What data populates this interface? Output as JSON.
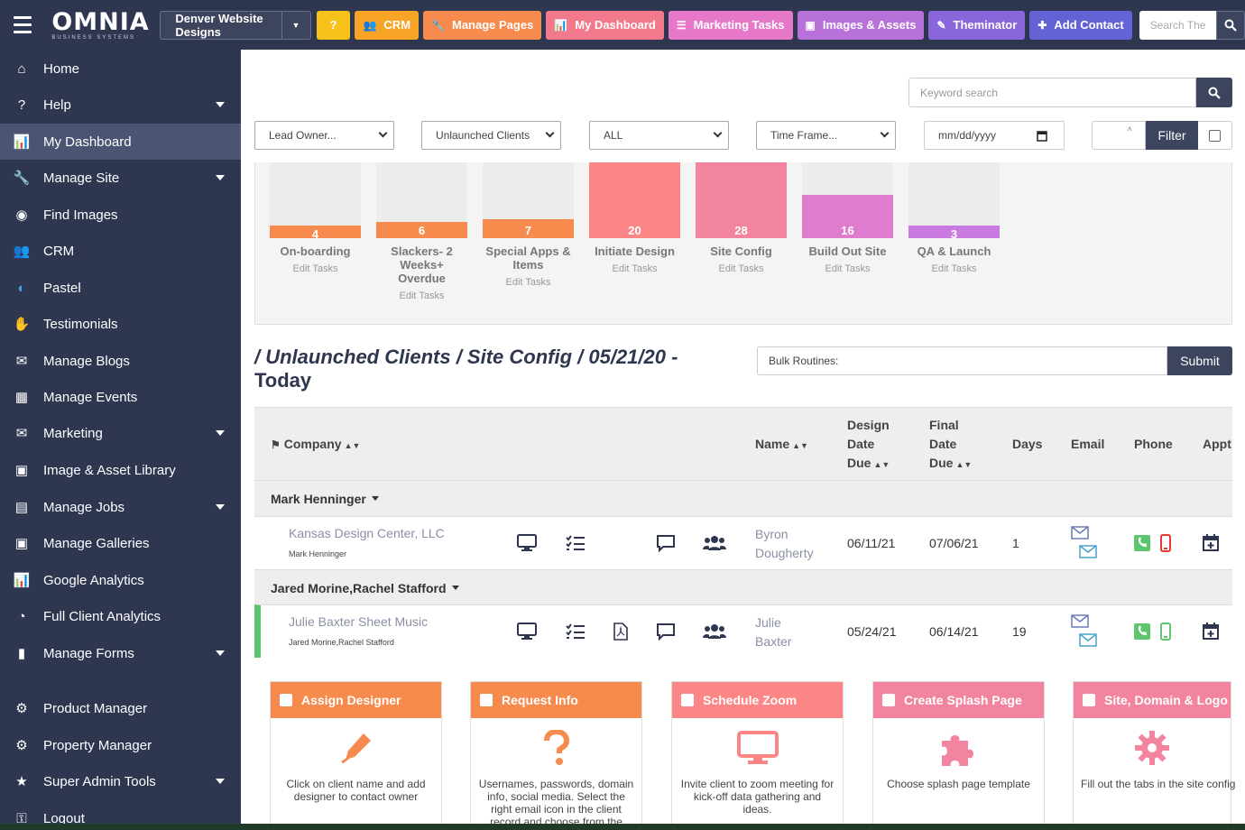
{
  "topbar": {
    "logo": "OMNIA",
    "logo_sub": "BUSINESS SYSTEMS",
    "site_select": "Denver Website Designs",
    "buttons": [
      {
        "label": "?",
        "icon": "question-icon",
        "color": "#f6c21a"
      },
      {
        "label": "CRM",
        "icon": "users-icon",
        "color": "#f7a427"
      },
      {
        "label": "Manage Pages",
        "icon": "wrench-icon",
        "color": "#f68b4d"
      },
      {
        "label": "My Dashboard",
        "icon": "chart-icon",
        "color": "#f2798c"
      },
      {
        "label": "Marketing Tasks",
        "icon": "tasks-icon",
        "color": "#e778c9"
      },
      {
        "label": "Images & Assets",
        "icon": "image-icon",
        "color": "#b871d9"
      },
      {
        "label": "Theminator",
        "icon": "brush-icon",
        "color": "#8a66db"
      },
      {
        "label": "Add Contact",
        "icon": "user-plus-icon",
        "color": "#6463d6"
      }
    ],
    "search_placeholder": "Search The"
  },
  "sidebar": {
    "items": [
      {
        "label": "Home",
        "icon": "home-icon"
      },
      {
        "label": "Help",
        "icon": "question-icon",
        "arrow": true
      },
      {
        "label": "My Dashboard",
        "icon": "chart-icon",
        "active": true
      },
      {
        "label": "Manage Site",
        "icon": "wrench-icon",
        "arrow": true
      },
      {
        "label": "Find Images",
        "icon": "camera-icon"
      },
      {
        "label": "CRM",
        "icon": "users-icon"
      },
      {
        "label": "Pastel",
        "icon": "pastel-icon"
      },
      {
        "label": "Testimonials",
        "icon": "handshake-icon"
      },
      {
        "label": "Manage Blogs",
        "icon": "comments-icon"
      },
      {
        "label": "Manage Events",
        "icon": "calendar-icon"
      },
      {
        "label": "Marketing",
        "icon": "envelope-icon",
        "arrow": true
      },
      {
        "label": "Image & Asset Library",
        "icon": "image-icon"
      },
      {
        "label": "Manage Jobs",
        "icon": "briefcase-icon",
        "arrow": true
      },
      {
        "label": "Manage Galleries",
        "icon": "images-icon"
      },
      {
        "label": "Google Analytics",
        "icon": "chart-icon"
      },
      {
        "label": "Full Client Analytics",
        "icon": "pie-icon"
      },
      {
        "label": "Manage Forms",
        "icon": "file-icon",
        "arrow": true
      },
      {
        "label": "Product Manager",
        "icon": "gear-icon"
      },
      {
        "label": "Property Manager",
        "icon": "gear-icon"
      },
      {
        "label": "Super Admin Tools",
        "icon": "star-icon",
        "arrow": true
      },
      {
        "label": "Logout",
        "icon": "unlock-icon"
      }
    ]
  },
  "filters": {
    "keyword_placeholder": "Keyword search",
    "lead_owner": "Lead Owner...",
    "client_type": "Unlaunched Clients",
    "scope": "ALL",
    "time_frame": "Time Frame...",
    "date_placeholder": "mm/dd/yyyy",
    "filter_label": "Filter"
  },
  "chart_data": {
    "type": "bar",
    "categories": [
      "On-boarding",
      "Slackers- 2 Weeks+ Overdue",
      "Special Apps & Items",
      "Initiate Design",
      "Site Config",
      "Build Out Site",
      "QA & Launch"
    ],
    "values": [
      4,
      6,
      7,
      20,
      28,
      16,
      3
    ],
    "colors": [
      "#f68b4d",
      "#f68b4d",
      "#f68b4d",
      "#fc8585",
      "#f3849f",
      "#e07ccd",
      "#c97ae0"
    ],
    "edit_label": "Edit Tasks"
  },
  "breadcrumb": {
    "path": "/ Unlaunched Clients / Site Config / 05/21/20 -",
    "suffix": "Today"
  },
  "bulk": {
    "placeholder": "Bulk Routines:",
    "submit": "Submit"
  },
  "table": {
    "headers": {
      "company": "Company",
      "name": "Name",
      "design_due": "Design Date Due",
      "final_due": "Final Date Due",
      "days": "Days",
      "email": "Email",
      "phone": "Phone",
      "appt": "Appt"
    },
    "groups": [
      {
        "owner": "Mark Henninger",
        "rows": [
          {
            "company": "Kansas Design Center, LLC",
            "owner": "Mark Henninger",
            "name_first": "Byron",
            "name_last": "Dougherty",
            "design_due": "06/11/21",
            "final_due": "07/06/21",
            "days": "1",
            "mobile_color": "#e53935"
          }
        ]
      },
      {
        "owner": "Jared Morine,Rachel Stafford",
        "rows": [
          {
            "company": "Julie Baxter Sheet Music",
            "owner": "Jared Morine,Rachel Stafford",
            "name_first": "Julie",
            "name_last": "Baxter",
            "design_due": "05/24/21",
            "final_due": "06/14/21",
            "days": "19",
            "mobile_color": "#5cc56d"
          }
        ]
      }
    ]
  },
  "cards": [
    {
      "title": "Assign Designer",
      "color": "#f68b4d",
      "icon": "pen-icon",
      "text": "Click on client name and add designer to contact owner"
    },
    {
      "title": "Request Info",
      "color": "#f68b4d",
      "icon": "question-icon",
      "text": "Usernames, passwords, domain info, social media. Select the right email icon in the client record and choose from the dropdown"
    },
    {
      "title": "Schedule Zoom",
      "color": "#fc8585",
      "icon": "monitor-icon",
      "text": "Invite client to zoom meeting for kick-off data gathering and ideas."
    },
    {
      "title": "Create Splash Page",
      "color": "#f3849f",
      "icon": "puzzle-icon",
      "text": "Choose splash page template"
    },
    {
      "title": "Site, Domain & Logo",
      "color": "#f3849f",
      "icon": "gear-icon",
      "text": "Fill out the tabs in the site config"
    }
  ]
}
